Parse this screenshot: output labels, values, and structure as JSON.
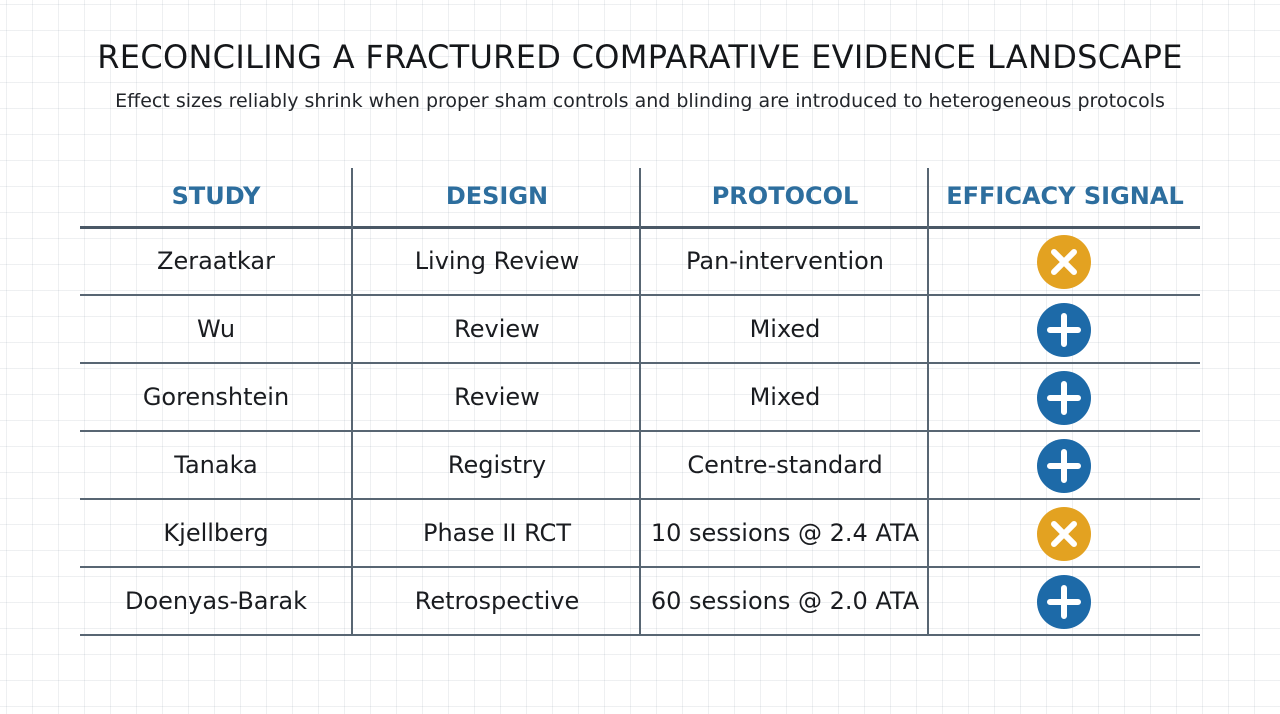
{
  "title": "RECONCILING A FRACTURED COMPARATIVE EVIDENCE LANDSCAPE",
  "subtitle": "Effect sizes reliably shrink when proper sham controls and blinding are introduced to heterogeneous protocols",
  "table": {
    "headers": [
      "STUDY",
      "DESIGN",
      "PROTOCOL",
      "EFFICACY SIGNAL"
    ],
    "rows": [
      {
        "study": "Zeraatkar",
        "design": "Living Review",
        "protocol": "Pan-intervention",
        "signal": "negative",
        "signal_icon": "x-icon"
      },
      {
        "study": "Wu",
        "design": "Review",
        "protocol": "Mixed",
        "signal": "positive",
        "signal_icon": "plus-icon"
      },
      {
        "study": "Gorenshtein",
        "design": "Review",
        "protocol": "Mixed",
        "signal": "positive",
        "signal_icon": "plus-icon"
      },
      {
        "study": "Tanaka",
        "design": "Registry",
        "protocol": "Centre-standard",
        "signal": "positive",
        "signal_icon": "plus-icon"
      },
      {
        "study": "Kjellberg",
        "design": "Phase II RCT",
        "protocol": "10 sessions @ 2.4 ATA",
        "signal": "negative",
        "signal_icon": "x-icon"
      },
      {
        "study": "Doenyas-Barak",
        "design": "Retrospective",
        "protocol": "60 sessions @ 2.0 ATA",
        "signal": "positive",
        "signal_icon": "plus-icon"
      }
    ]
  },
  "colors": {
    "header_text": "#2d6e9e",
    "positive": "#1d6aa8",
    "negative": "#e3a221"
  }
}
